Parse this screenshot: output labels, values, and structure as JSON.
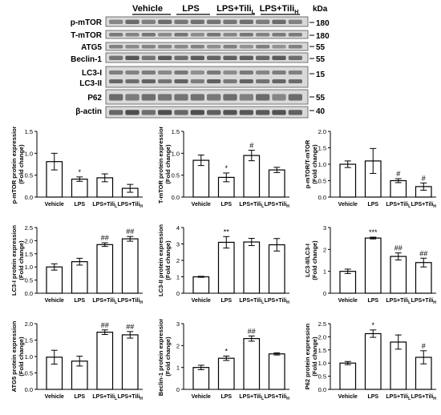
{
  "blot": {
    "groups": [
      "Vehicle",
      "LPS",
      "LPS+Tili",
      "LPS+Tili"
    ],
    "group_subscripts": [
      "",
      "",
      "L",
      "H"
    ],
    "kda_label": "kDa",
    "bands": [
      {
        "label": "p-mTOR",
        "kda": "180"
      },
      {
        "label": "T-mTOR",
        "kda": "180"
      },
      {
        "label": "ATG5",
        "kda": "55"
      },
      {
        "label": "Beclin-1",
        "kda": "55"
      },
      {
        "label": "LC3-I",
        "kda": "15"
      },
      {
        "label": "LC3-II",
        "kda": ""
      },
      {
        "label": "P62",
        "kda": "55"
      },
      {
        "label": "β-actin",
        "kda": "40"
      }
    ]
  },
  "chart_data": [
    {
      "type": "bar",
      "categories": [
        "Vehicle",
        "LPS",
        "LPS+Tili_L",
        "LPS+Tili_H"
      ],
      "values": [
        0.81,
        0.41,
        0.44,
        0.2
      ],
      "errors": [
        0.19,
        0.05,
        0.09,
        0.09
      ],
      "significance": [
        "",
        "*",
        "",
        ""
      ],
      "ylabel": [
        "p-mTOR protein expression",
        "(Fold change)"
      ],
      "ylim": [
        0,
        1.5
      ],
      "yticks": [
        "0.0",
        "0.5",
        "1.0",
        "1.5"
      ]
    },
    {
      "type": "bar",
      "categories": [
        "Vehicle",
        "LPS",
        "LPS+Tili_L",
        "LPS+Tili_H"
      ],
      "values": [
        0.84,
        0.45,
        0.95,
        0.62
      ],
      "errors": [
        0.12,
        0.1,
        0.12,
        0.06
      ],
      "significance": [
        "",
        "*",
        "#",
        ""
      ],
      "ylabel": [
        "T-mTOR protein expression",
        "(Fold change)"
      ],
      "ylim": [
        0,
        1.5
      ],
      "yticks": [
        "0.0",
        "0.5",
        "1.0",
        "1.5"
      ]
    },
    {
      "type": "bar",
      "categories": [
        "Vehicle",
        "LPS",
        "LPS+Tili_L",
        "LPS+Tili_H"
      ],
      "values": [
        1.0,
        1.1,
        0.5,
        0.32
      ],
      "errors": [
        0.1,
        0.38,
        0.06,
        0.11
      ],
      "significance": [
        "",
        "",
        "#",
        "#"
      ],
      "ylabel": [
        "p-mTOR/T-mTOR",
        "(Fold change)"
      ],
      "ylim": [
        0,
        2.0
      ],
      "yticks": [
        "0.0",
        "0.5",
        "1.0",
        "1.5",
        "2.0"
      ]
    },
    {
      "type": "bar",
      "categories": [
        "Vehicle",
        "LPS",
        "LPS+Tili_L",
        "LPS+Tili_H"
      ],
      "values": [
        1.0,
        1.2,
        1.85,
        2.07
      ],
      "errors": [
        0.12,
        0.13,
        0.07,
        0.09
      ],
      "significance": [
        "",
        "",
        "##",
        "##"
      ],
      "ylabel": [
        "LC3-I protein expression",
        "(Fold change)"
      ],
      "ylim": [
        0,
        2.5
      ],
      "yticks": [
        "0.0",
        "0.5",
        "1.0",
        "1.5",
        "2.0",
        "2.5"
      ]
    },
    {
      "type": "bar",
      "categories": [
        "Vehicle",
        "LPS",
        "LPS+Tili_L",
        "LPS+Tili_H"
      ],
      "values": [
        1.0,
        3.1,
        3.12,
        2.95
      ],
      "errors": [
        0.03,
        0.35,
        0.22,
        0.38
      ],
      "significance": [
        "",
        "**",
        "",
        ""
      ],
      "ylabel": [
        "LC3-II protein expression",
        "(Fold change)"
      ],
      "ylim": [
        0,
        4
      ],
      "yticks": [
        "0",
        "1",
        "2",
        "3",
        "4"
      ]
    },
    {
      "type": "bar",
      "categories": [
        "Vehicle",
        "LPS",
        "LPS+Tili_L",
        "LPS+Tili_H"
      ],
      "values": [
        1.0,
        2.52,
        1.68,
        1.4
      ],
      "errors": [
        0.1,
        0.04,
        0.16,
        0.2
      ],
      "significance": [
        "",
        "***",
        "##",
        "##"
      ],
      "ylabel": [
        "LC3-II/LC3-I",
        "(Fold change)"
      ],
      "ylim": [
        0,
        3
      ],
      "yticks": [
        "0",
        "1",
        "2",
        "3"
      ]
    },
    {
      "type": "bar",
      "categories": [
        "Vehicle",
        "LPS",
        "LPS+Tili_L",
        "LPS+Tili_H"
      ],
      "values": [
        0.98,
        0.86,
        1.74,
        1.66
      ],
      "errors": [
        0.21,
        0.15,
        0.07,
        0.1
      ],
      "significance": [
        "",
        "",
        "##",
        "##"
      ],
      "ylabel": [
        "ATG5 protein expression",
        "(Fold change)"
      ],
      "ylim": [
        0,
        2.0
      ],
      "yticks": [
        "0.0",
        "0.5",
        "1.0",
        "1.5",
        "2.0"
      ]
    },
    {
      "type": "bar",
      "categories": [
        "Vehicle",
        "LPS",
        "LPS+Tili_L",
        "LPS+Tili_H"
      ],
      "values": [
        1.0,
        1.42,
        2.32,
        1.62
      ],
      "errors": [
        0.1,
        0.1,
        0.12,
        0.05
      ],
      "significance": [
        "",
        "*",
        "##",
        ""
      ],
      "ylabel": [
        "Beclin-1 protein expression",
        "(Fold change)"
      ],
      "ylim": [
        0,
        3
      ],
      "yticks": [
        "0",
        "1",
        "2",
        "3"
      ]
    },
    {
      "type": "bar",
      "categories": [
        "Vehicle",
        "LPS",
        "LPS+Tili_L",
        "LPS+Tili_H"
      ],
      "values": [
        1.0,
        2.12,
        1.8,
        1.22
      ],
      "errors": [
        0.06,
        0.14,
        0.27,
        0.25
      ],
      "significance": [
        "",
        "*",
        "",
        "#"
      ],
      "ylabel": [
        "P62 protein expression",
        "(Fold change)"
      ],
      "ylim": [
        0,
        2.5
      ],
      "yticks": [
        "0.0",
        "0.5",
        "1.0",
        "1.5",
        "2.0",
        "2.5"
      ]
    }
  ]
}
